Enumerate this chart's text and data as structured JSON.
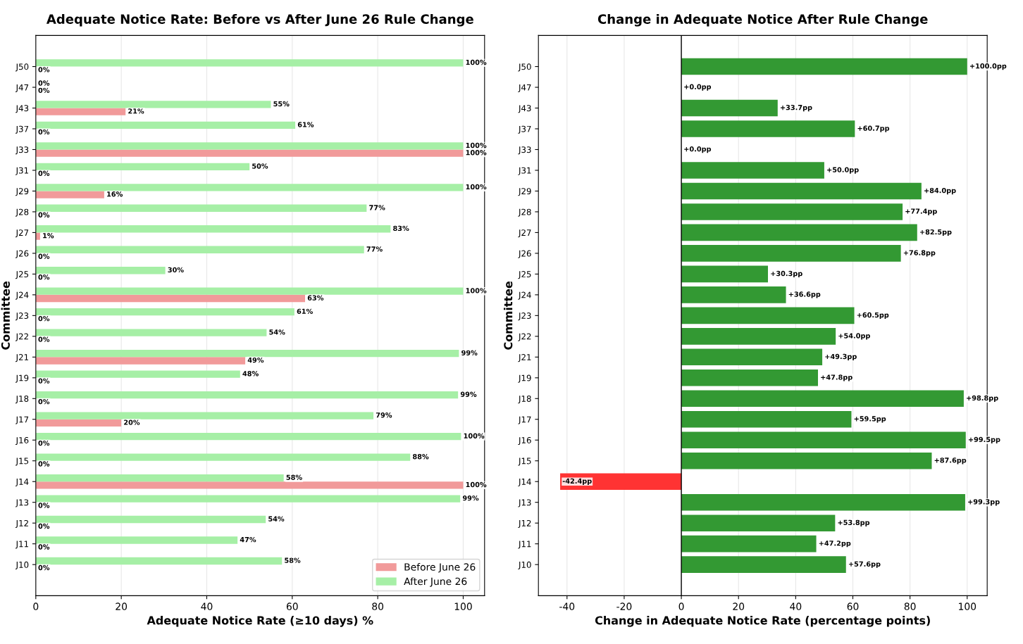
{
  "chart_data": [
    {
      "type": "bar",
      "orientation": "horizontal",
      "title": "Adequate Notice Rate: Before vs After June 26 Rule Change",
      "xlabel": "Adequate Notice Rate (≥10 days) %",
      "ylabel": "Committee",
      "categories": [
        "J50",
        "J47",
        "J43",
        "J37",
        "J33",
        "J31",
        "J29",
        "J28",
        "J27",
        "J26",
        "J25",
        "J24",
        "J23",
        "J22",
        "J21",
        "J19",
        "J18",
        "J17",
        "J16",
        "J15",
        "J14",
        "J13",
        "J12",
        "J11",
        "J10"
      ],
      "series": [
        {
          "name": "Before June 26",
          "color": "#f19a9a",
          "values": [
            0,
            0,
            21,
            0,
            100,
            0,
            16,
            0,
            1,
            0,
            0,
            63,
            0,
            0,
            49,
            0,
            0,
            20,
            0,
            0,
            100,
            0,
            0,
            0,
            0
          ],
          "value_labels": [
            "0%",
            "0%",
            "21%",
            "0%",
            "100%",
            "0%",
            "16%",
            "0%",
            "1%",
            "0%",
            "0%",
            "63%",
            "0%",
            "0%",
            "49%",
            "0%",
            "0%",
            "20%",
            "0%",
            "0%",
            "100%",
            "0%",
            "0%",
            "0%",
            "0%"
          ]
        },
        {
          "name": "After June 26",
          "color": "#a6efa6",
          "values": [
            100,
            0,
            55,
            60.7,
            100,
            50.0,
            100,
            77.4,
            83,
            76.8,
            30.3,
            100,
            60.5,
            54.0,
            99,
            47.8,
            98.8,
            79,
            99.5,
            87.6,
            58,
            99.3,
            53.8,
            47.2,
            57.6
          ],
          "value_labels": [
            "100%",
            "0%",
            "55%",
            "61%",
            "100%",
            "50%",
            "100%",
            "77%",
            "83%",
            "77%",
            "30%",
            "100%",
            "61%",
            "54%",
            "99%",
            "48%",
            "99%",
            "79%",
            "100%",
            "88%",
            "58%",
            "99%",
            "54%",
            "47%",
            "58%"
          ]
        }
      ],
      "xlim": [
        0,
        105
      ],
      "xticks": [
        0,
        20,
        40,
        60,
        80,
        100
      ],
      "grid": "x",
      "legend": "bottom right"
    },
    {
      "type": "bar",
      "orientation": "horizontal",
      "title": "Change in Adequate Notice After Rule Change",
      "xlabel": "Change in Adequate Notice Rate (percentage points)",
      "ylabel": "Committee",
      "categories": [
        "J50",
        "J47",
        "J43",
        "J37",
        "J33",
        "J31",
        "J29",
        "J28",
        "J27",
        "J26",
        "J25",
        "J24",
        "J23",
        "J22",
        "J21",
        "J19",
        "J18",
        "J17",
        "J16",
        "J15",
        "J14",
        "J13",
        "J12",
        "J11",
        "J10"
      ],
      "values": [
        100.0,
        0.0,
        33.7,
        60.7,
        0.0,
        50.0,
        84.0,
        77.4,
        82.5,
        76.8,
        30.3,
        36.6,
        60.5,
        54.0,
        49.3,
        47.8,
        98.8,
        59.5,
        99.5,
        87.6,
        -42.4,
        99.3,
        53.8,
        47.2,
        57.6
      ],
      "value_labels": [
        "+100.0pp",
        "+0.0pp",
        "+33.7pp",
        "+60.7pp",
        "+0.0pp",
        "+50.0pp",
        "+84.0pp",
        "+77.4pp",
        "+82.5pp",
        "+76.8pp",
        "+30.3pp",
        "+36.6pp",
        "+60.5pp",
        "+54.0pp",
        "+49.3pp",
        "+47.8pp",
        "+98.8pp",
        "+59.5pp",
        "+99.5pp",
        "+87.6pp",
        "-42.4pp",
        "+99.3pp",
        "+53.8pp",
        "+47.2pp",
        "+57.6pp"
      ],
      "colors": [
        "#339933",
        "#339933",
        "#339933",
        "#339933",
        "#339933",
        "#339933",
        "#339933",
        "#339933",
        "#339933",
        "#339933",
        "#339933",
        "#339933",
        "#339933",
        "#339933",
        "#339933",
        "#339933",
        "#339933",
        "#339933",
        "#339933",
        "#339933",
        "#ff3333",
        "#339933",
        "#339933",
        "#339933",
        "#339933"
      ],
      "ref_lines": [
        {
          "axis": "x",
          "value": 0,
          "color": "#000000"
        }
      ],
      "xlim": [
        -50,
        107
      ],
      "xticks": [
        -40,
        -20,
        0,
        20,
        40,
        60,
        80,
        100
      ],
      "grid": "x",
      "legend": false
    }
  ]
}
